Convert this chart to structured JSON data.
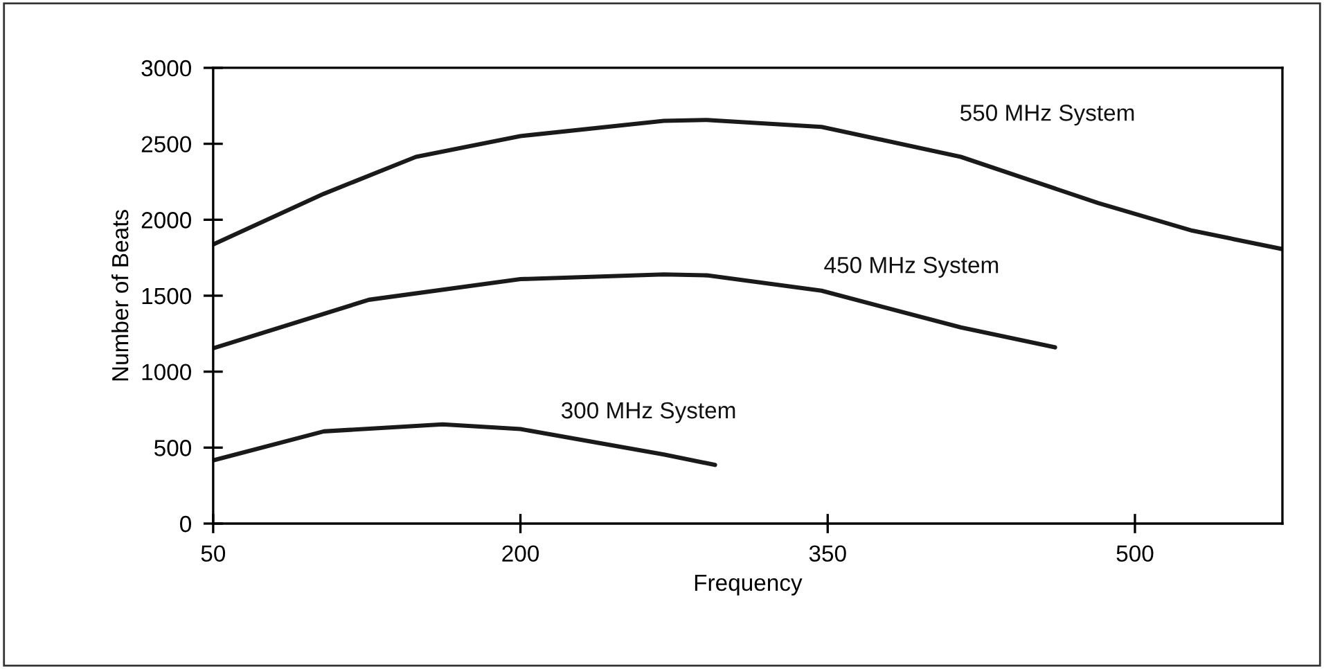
{
  "chart_data": {
    "type": "line",
    "xlabel": "Frequency",
    "ylabel": "Number of Beats",
    "xlim": [
      50,
      572
    ],
    "xticks": [
      50,
      200,
      350,
      500
    ],
    "ylim": [
      0,
      3000
    ],
    "yticks": [
      0,
      500,
      1000,
      1500,
      2000,
      2500,
      3000
    ],
    "grid": false,
    "legend": false,
    "marker": "none",
    "line_style": "solid",
    "series": [
      {
        "name": "550 MHz System",
        "color": "#1a1a1a",
        "x": [
          50,
          104,
          149,
          200,
          270,
          291,
          347,
          415,
          482,
          528,
          572
        ],
        "values": [
          1837,
          2171,
          2414,
          2551,
          2651,
          2657,
          2611,
          2414,
          2110,
          1928,
          1807
        ]
      },
      {
        "name": "450 MHz System",
        "color": "#1a1a1a",
        "x": [
          50,
          126,
          200,
          270,
          291,
          347,
          415,
          461
        ],
        "values": [
          1154,
          1473,
          1609,
          1640,
          1634,
          1533,
          1291,
          1160
        ]
      },
      {
        "name": "300 MHz System",
        "color": "#1a1a1a",
        "x": [
          50,
          104,
          162,
          200,
          270,
          295
        ],
        "values": [
          416,
          607,
          653,
          622,
          455,
          386
        ]
      }
    ]
  }
}
